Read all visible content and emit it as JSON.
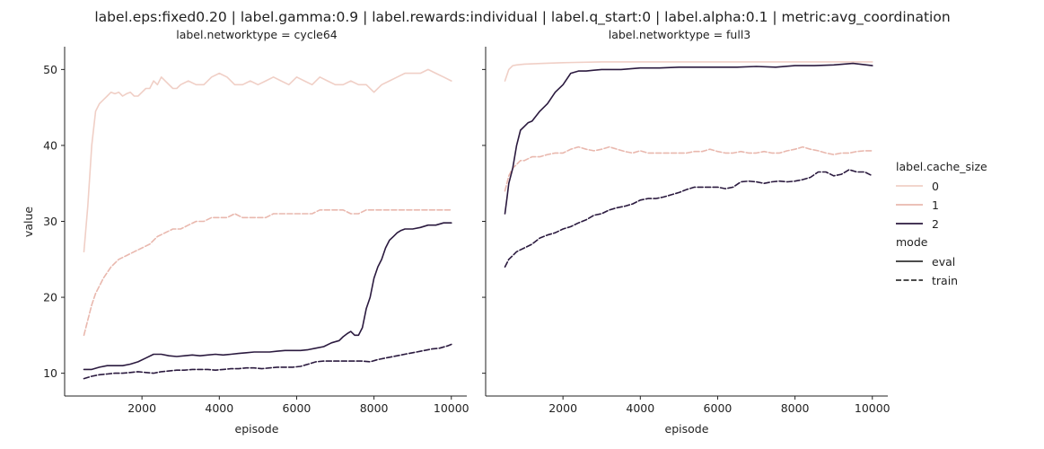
{
  "figure": {
    "suptitle": "label.eps:fixed0.20 | label.gamma:0.9 | label.rewards:individual | label.q_start:0 | label.alpha:0.1 | metric:avg_coordination"
  },
  "legend": {
    "hue_title": "label.cache_size",
    "hue_entries": [
      {
        "label": "0",
        "color": "#f0cfc6"
      },
      {
        "label": "1",
        "color": "#e9b8ae"
      },
      {
        "label": "2",
        "color": "#2b1a3f"
      }
    ],
    "style_title": "mode",
    "style_entries": [
      {
        "label": "eval",
        "dash": "solid"
      },
      {
        "label": "train",
        "dash": "dashed"
      }
    ]
  },
  "chart_data": [
    {
      "type": "line",
      "title": "label.networktype = cycle64",
      "xlabel": "episode",
      "ylabel": "value",
      "xlim": [
        0,
        10400
      ],
      "ylim": [
        7,
        53
      ],
      "x_ticks": [
        2000,
        4000,
        6000,
        8000,
        10000
      ],
      "y_ticks": [
        10,
        20,
        30,
        40,
        50
      ],
      "y_tick_labels": [
        "10",
        "20",
        "30",
        "40",
        "50"
      ],
      "series": [
        {
          "cache_size": "0",
          "mode": "eval",
          "color": "#f0cfc6",
          "dash": "solid",
          "x": [
            500,
            600,
            700,
            800,
            900,
            1000,
            1100,
            1200,
            1300,
            1400,
            1500,
            1600,
            1700,
            1800,
            1900,
            2000,
            2100,
            2200,
            2300,
            2400,
            2500,
            2600,
            2700,
            2800,
            2900,
            3000,
            3200,
            3400,
            3600,
            3800,
            4000,
            4200,
            4400,
            4600,
            4800,
            5000,
            5200,
            5400,
            5600,
            5800,
            6000,
            6200,
            6400,
            6600,
            6800,
            7000,
            7200,
            7400,
            7600,
            7800,
            8000,
            8200,
            8400,
            8600,
            8800,
            9000,
            9200,
            9400,
            9600,
            9800,
            10000
          ],
          "y": [
            26,
            32,
            40,
            44.5,
            45.5,
            46,
            46.5,
            47,
            46.8,
            47,
            46.5,
            46.8,
            47,
            46.5,
            46.5,
            47,
            47.5,
            47.5,
            48.5,
            48,
            49,
            48.5,
            48,
            47.5,
            47.5,
            48,
            48.5,
            48,
            48,
            49,
            49.5,
            49,
            48,
            48,
            48.5,
            48,
            48.5,
            49,
            48.5,
            48,
            49,
            48.5,
            48,
            49,
            48.5,
            48,
            48,
            48.5,
            48,
            48,
            47,
            48,
            48.5,
            49,
            49.5,
            49.5,
            49.5,
            50,
            49.5,
            49,
            48.5
          ]
        },
        {
          "cache_size": "1",
          "mode": "train",
          "color": "#e9b8ae",
          "dash": "dashed",
          "x": [
            500,
            600,
            700,
            800,
            900,
            1000,
            1200,
            1400,
            1600,
            1800,
            2000,
            2200,
            2400,
            2600,
            2800,
            3000,
            3200,
            3400,
            3600,
            3800,
            4000,
            4200,
            4400,
            4600,
            4800,
            5000,
            5200,
            5400,
            5600,
            5800,
            6000,
            6200,
            6400,
            6600,
            6800,
            7000,
            7200,
            7400,
            7600,
            7800,
            8000,
            8200,
            8400,
            8600,
            8800,
            9000,
            9200,
            9400,
            9600,
            9800,
            10000
          ],
          "y": [
            15,
            17,
            19,
            20.5,
            21.5,
            22.5,
            24,
            25,
            25.5,
            26,
            26.5,
            27,
            28,
            28.5,
            29,
            29,
            29.5,
            30,
            30,
            30.5,
            30.5,
            30.5,
            31,
            30.5,
            30.5,
            30.5,
            30.5,
            31,
            31,
            31,
            31,
            31,
            31,
            31.5,
            31.5,
            31.5,
            31.5,
            31,
            31,
            31.5,
            31.5,
            31.5,
            31.5,
            31.5,
            31.5,
            31.5,
            31.5,
            31.5,
            31.5,
            31.5,
            31.5
          ]
        },
        {
          "cache_size": "2",
          "mode": "eval",
          "color": "#2b1a3f",
          "dash": "solid",
          "x": [
            500,
            700,
            900,
            1100,
            1300,
            1500,
            1700,
            1900,
            2100,
            2300,
            2500,
            2700,
            2900,
            3100,
            3300,
            3500,
            3700,
            3900,
            4100,
            4300,
            4500,
            4700,
            4900,
            5100,
            5300,
            5500,
            5700,
            5900,
            6100,
            6300,
            6500,
            6700,
            6900,
            7100,
            7200,
            7300,
            7400,
            7500,
            7600,
            7700,
            7800,
            7900,
            8000,
            8100,
            8200,
            8300,
            8400,
            8500,
            8600,
            8700,
            8800,
            9000,
            9200,
            9400,
            9600,
            9800,
            10000
          ],
          "y": [
            10.5,
            10.5,
            10.8,
            11,
            11,
            11,
            11.2,
            11.5,
            12,
            12.5,
            12.5,
            12.3,
            12.2,
            12.3,
            12.4,
            12.3,
            12.4,
            12.5,
            12.4,
            12.5,
            12.6,
            12.7,
            12.8,
            12.8,
            12.8,
            12.9,
            13,
            13,
            13,
            13.1,
            13.3,
            13.5,
            14,
            14.3,
            14.8,
            15.2,
            15.5,
            15,
            15,
            16,
            18.5,
            20,
            22.5,
            24,
            25,
            26.5,
            27.5,
            28,
            28.5,
            28.8,
            29,
            29,
            29.2,
            29.5,
            29.5,
            29.8,
            29.8
          ]
        },
        {
          "cache_size": "2",
          "mode": "train",
          "color": "#2b1a3f",
          "dash": "dashed",
          "x": [
            500,
            700,
            900,
            1100,
            1300,
            1500,
            1700,
            1900,
            2100,
            2300,
            2500,
            2700,
            2900,
            3100,
            3300,
            3500,
            3700,
            3900,
            4100,
            4300,
            4500,
            4700,
            4900,
            5100,
            5300,
            5500,
            5700,
            5900,
            6100,
            6300,
            6500,
            6700,
            6900,
            7100,
            7300,
            7500,
            7700,
            7900,
            8100,
            8300,
            8500,
            8700,
            8900,
            9100,
            9300,
            9500,
            9700,
            9900,
            10000
          ],
          "y": [
            9.3,
            9.6,
            9.8,
            9.9,
            10,
            10,
            10.1,
            10.2,
            10.1,
            10,
            10.2,
            10.3,
            10.4,
            10.4,
            10.5,
            10.5,
            10.5,
            10.4,
            10.5,
            10.6,
            10.6,
            10.7,
            10.7,
            10.6,
            10.7,
            10.8,
            10.8,
            10.8,
            10.9,
            11.2,
            11.5,
            11.6,
            11.6,
            11.6,
            11.6,
            11.6,
            11.6,
            11.5,
            11.8,
            12,
            12.2,
            12.4,
            12.6,
            12.8,
            13,
            13.2,
            13.3,
            13.6,
            13.8
          ]
        }
      ]
    },
    {
      "type": "line",
      "title": "label.networktype = full3",
      "xlabel": "episode",
      "ylabel": "",
      "xlim": [
        0,
        10400
      ],
      "ylim": [
        7,
        53
      ],
      "x_ticks": [
        2000,
        4000,
        6000,
        8000,
        10000
      ],
      "y_ticks": [
        10,
        20,
        30,
        40,
        50
      ],
      "y_tick_labels": [],
      "series": [
        {
          "cache_size": "0",
          "mode": "eval",
          "color": "#f0cfc6",
          "dash": "solid",
          "x": [
            500,
            600,
            700,
            800,
            1000,
            1500,
            2000,
            3000,
            4000,
            5000,
            6000,
            7000,
            8000,
            9000,
            10000
          ],
          "y": [
            48.5,
            50,
            50.5,
            50.6,
            50.7,
            50.8,
            50.9,
            51,
            51,
            51,
            51,
            51,
            51,
            51,
            51
          ]
        },
        {
          "cache_size": "1",
          "mode": "train",
          "color": "#e9b8ae",
          "dash": "dashed",
          "x": [
            500,
            600,
            700,
            800,
            900,
            1000,
            1200,
            1400,
            1600,
            1800,
            2000,
            2200,
            2400,
            2600,
            2800,
            3000,
            3200,
            3400,
            3600,
            3800,
            4000,
            4200,
            4400,
            4600,
            4800,
            5000,
            5200,
            5400,
            5600,
            5800,
            6000,
            6200,
            6400,
            6600,
            6800,
            7000,
            7200,
            7400,
            7600,
            7800,
            8000,
            8200,
            8400,
            8600,
            8800,
            9000,
            9200,
            9400,
            9600,
            9800,
            10000
          ],
          "y": [
            34,
            36,
            37,
            37.5,
            38,
            38,
            38.5,
            38.5,
            38.8,
            39,
            39,
            39.5,
            39.8,
            39.5,
            39.3,
            39.5,
            39.8,
            39.5,
            39.2,
            39,
            39.3,
            39,
            39,
            39,
            39,
            39,
            39,
            39.2,
            39.2,
            39.5,
            39.2,
            39,
            39,
            39.2,
            39,
            39,
            39.2,
            39,
            39,
            39.3,
            39.5,
            39.8,
            39.5,
            39.3,
            39,
            38.8,
            39,
            39,
            39.2,
            39.3,
            39.3
          ]
        },
        {
          "cache_size": "2",
          "mode": "eval",
          "color": "#2b1a3f",
          "dash": "solid",
          "x": [
            500,
            550,
            600,
            700,
            800,
            900,
            1000,
            1100,
            1200,
            1400,
            1600,
            1800,
            2000,
            2200,
            2400,
            2600,
            2800,
            3000,
            3500,
            4000,
            4500,
            5000,
            5500,
            6000,
            6500,
            7000,
            7500,
            8000,
            8500,
            9000,
            9500,
            10000
          ],
          "y": [
            31,
            33,
            35,
            37,
            40,
            42,
            42.5,
            43,
            43.2,
            44.5,
            45.5,
            47,
            48,
            49.5,
            49.8,
            49.8,
            49.9,
            50,
            50,
            50.2,
            50.2,
            50.3,
            50.3,
            50.3,
            50.3,
            50.4,
            50.3,
            50.5,
            50.5,
            50.6,
            50.8,
            50.5
          ]
        },
        {
          "cache_size": "2",
          "mode": "train",
          "color": "#2b1a3f",
          "dash": "dashed",
          "x": [
            500,
            600,
            700,
            800,
            1000,
            1200,
            1400,
            1600,
            1800,
            2000,
            2200,
            2400,
            2600,
            2800,
            3000,
            3200,
            3400,
            3600,
            3800,
            4000,
            4200,
            4400,
            4600,
            4800,
            5000,
            5200,
            5400,
            5600,
            5800,
            6000,
            6200,
            6400,
            6600,
            6800,
            7000,
            7200,
            7400,
            7600,
            7800,
            8000,
            8200,
            8400,
            8600,
            8800,
            9000,
            9200,
            9400,
            9600,
            9800,
            10000
          ],
          "y": [
            24,
            25,
            25.5,
            26,
            26.5,
            27,
            27.8,
            28.2,
            28.5,
            29,
            29.3,
            29.8,
            30.2,
            30.8,
            31,
            31.5,
            31.8,
            32,
            32.3,
            32.8,
            33,
            33,
            33.2,
            33.5,
            33.8,
            34.2,
            34.5,
            34.5,
            34.5,
            34.5,
            34.3,
            34.5,
            35.2,
            35.3,
            35.2,
            35,
            35.2,
            35.3,
            35.2,
            35.3,
            35.5,
            35.8,
            36.5,
            36.5,
            36,
            36.2,
            36.8,
            36.5,
            36.5,
            36
          ]
        }
      ]
    }
  ]
}
